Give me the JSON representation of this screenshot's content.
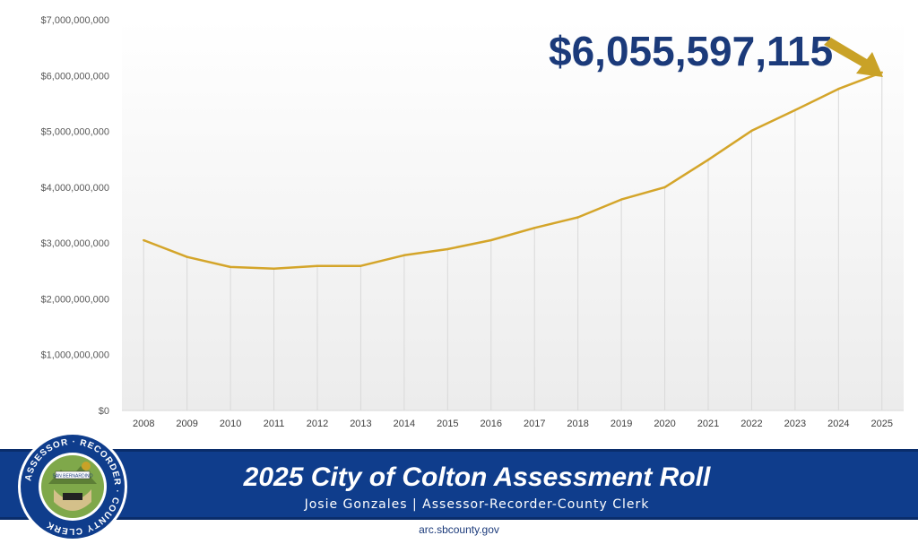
{
  "chart_data": {
    "type": "line",
    "title": "",
    "xlabel": "",
    "ylabel": "",
    "x": [
      "2008",
      "2009",
      "2010",
      "2011",
      "2012",
      "2013",
      "2014",
      "2015",
      "2016",
      "2017",
      "2018",
      "2019",
      "2020",
      "2021",
      "2022",
      "2023",
      "2024",
      "2025"
    ],
    "series": [
      {
        "values": [
          3050000000,
          2750000000,
          2570000000,
          2540000000,
          2590000000,
          2590000000,
          2780000000,
          2890000000,
          3050000000,
          3270000000,
          3460000000,
          3780000000,
          4000000000,
          4490000000,
          5010000000,
          5380000000,
          5760000000,
          6055597115
        ],
        "color": "#d4a52a"
      }
    ],
    "ylim": [
      0,
      7000000000
    ],
    "yticks": [
      {
        "value": 0,
        "label": "$0"
      },
      {
        "value": 1000000000,
        "label": "$1,000,000,000"
      },
      {
        "value": 2000000000,
        "label": "$2,000,000,000"
      },
      {
        "value": 3000000000,
        "label": "$3,000,000,000"
      },
      {
        "value": 4000000000,
        "label": "$4,000,000,000"
      },
      {
        "value": 5000000000,
        "label": "$5,000,000,000"
      },
      {
        "value": 6000000000,
        "label": "$6,000,000,000"
      },
      {
        "value": 7000000000,
        "label": "$7,000,000,000"
      }
    ],
    "grid": "vertical",
    "legend": "none",
    "callout": {
      "text": "$6,055,597,115",
      "color": "#1b3a7a",
      "arrow_color": "#c9a227"
    }
  },
  "banner": {
    "title": "2025 City of Colton Assessment Roll",
    "subtitle": "Josie Gonzales | Assessor-Recorder-County Clerk",
    "background": "#0f3d8c"
  },
  "footer": {
    "url": "arc.sbcounty.gov"
  },
  "seal": {
    "ring_text": "ASSESSOR · RECORDER · COUNTY CLERK",
    "center_text": "SAN BERNARDINO"
  }
}
